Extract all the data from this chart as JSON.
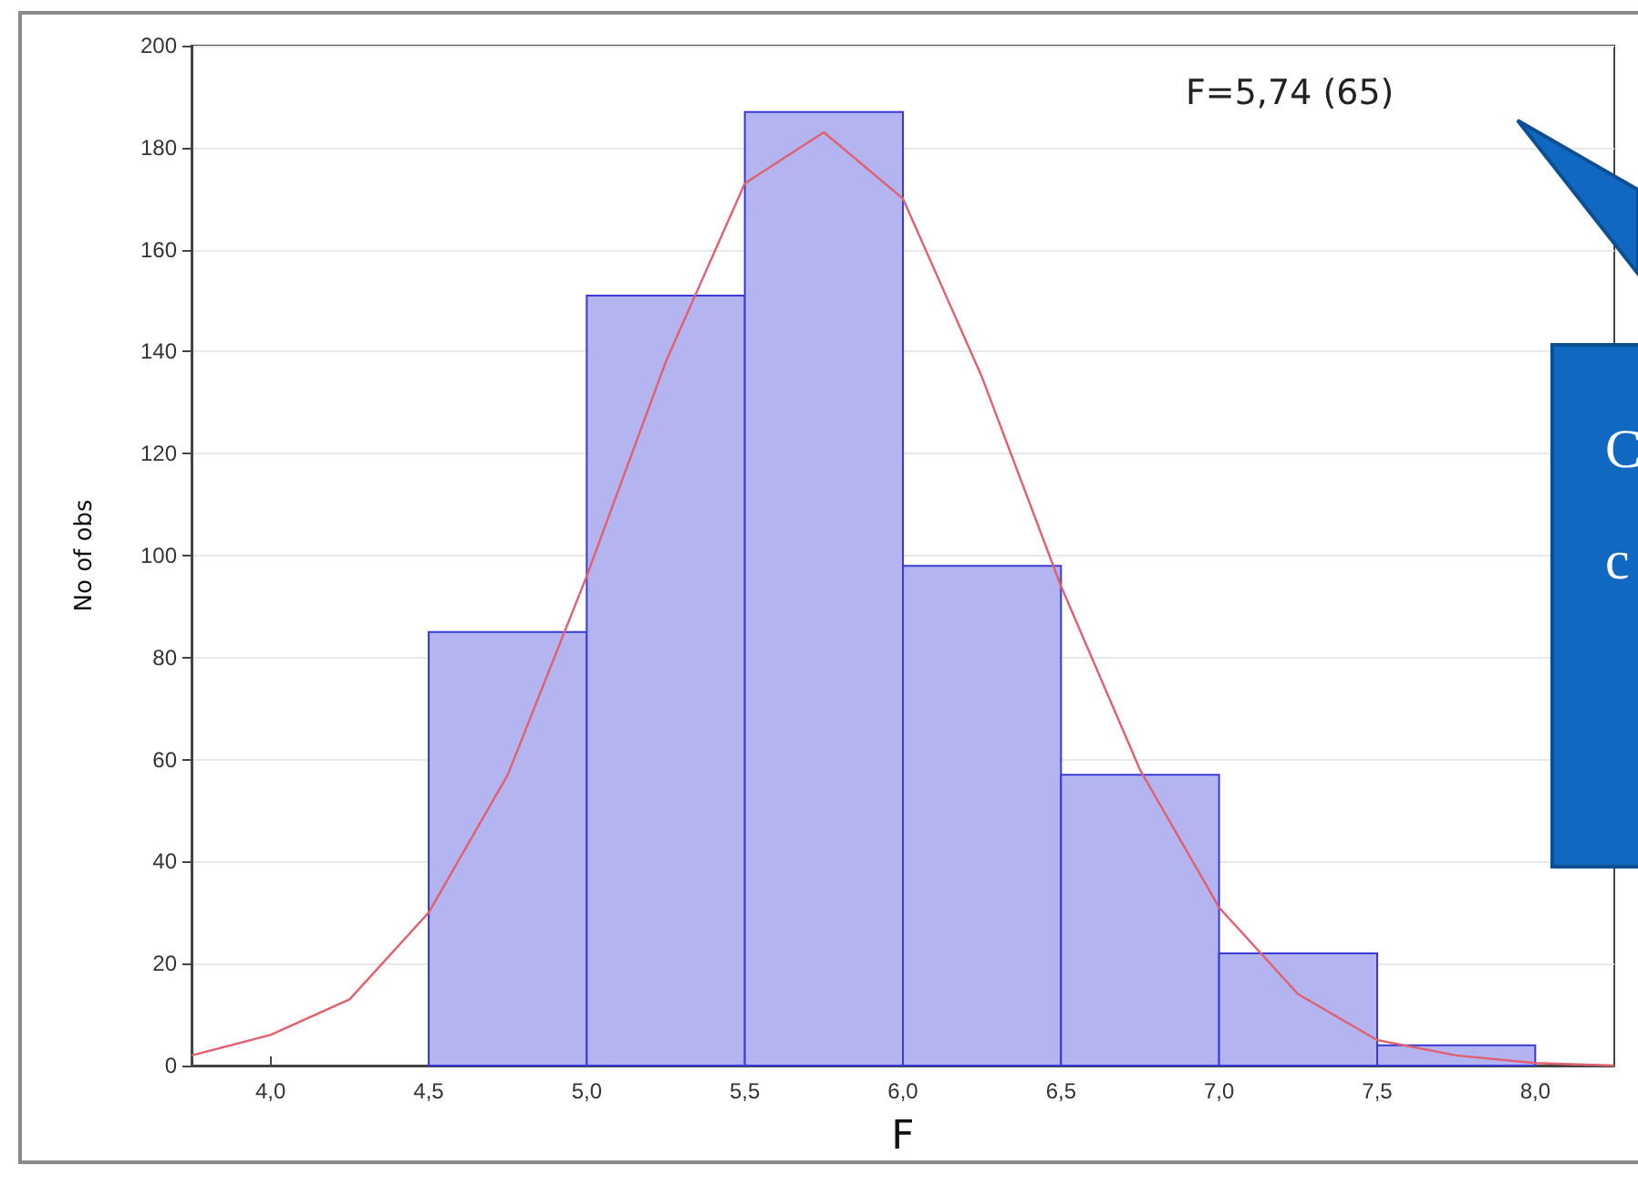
{
  "chart_data": {
    "type": "histogram",
    "xlabel": "F",
    "ylabel": "No of obs",
    "bins": [
      4.5,
      5.0,
      5.5,
      6.0,
      6.5,
      7.0,
      7.5,
      8.0
    ],
    "values": [
      85,
      151,
      187,
      98,
      57,
      22,
      4
    ],
    "color": "#b4b4f0",
    "series": [
      {
        "type": "line",
        "color": "#e06070",
        "x": [
          3.75,
          4.0,
          4.25,
          4.5,
          4.75,
          5.0,
          5.25,
          5.5,
          5.75,
          6.0,
          6.25,
          6.5,
          6.75,
          7.0,
          7.25,
          7.5,
          7.75,
          8.0,
          8.25
        ],
        "values": [
          2,
          6,
          13,
          30,
          57,
          96,
          138,
          173,
          183,
          170,
          135,
          94,
          58,
          31,
          14,
          5,
          2,
          0.5,
          0
        ]
      }
    ],
    "xlim": [
      3.75,
      8.25
    ],
    "xticks": [
      {
        "value": 4.0,
        "label": "4,0"
      },
      {
        "value": 4.5,
        "label": "4,5"
      },
      {
        "value": 5.0,
        "label": "5,0"
      },
      {
        "value": 5.5,
        "label": "5,5"
      },
      {
        "value": 6.0,
        "label": "6,0"
      },
      {
        "value": 6.5,
        "label": "6,5"
      },
      {
        "value": 7.0,
        "label": "7,0"
      },
      {
        "value": 7.5,
        "label": "7,5"
      },
      {
        "value": 8.0,
        "label": "8,0"
      }
    ],
    "ylim": [
      0,
      200
    ],
    "yticks": [
      0,
      20,
      40,
      60,
      80,
      100,
      120,
      140,
      160,
      180,
      200
    ],
    "grid": "y",
    "marker": "none",
    "line_style": "solid",
    "annotations": [
      "F=5,74 (65)",
      "C",
      "c"
    ]
  }
}
